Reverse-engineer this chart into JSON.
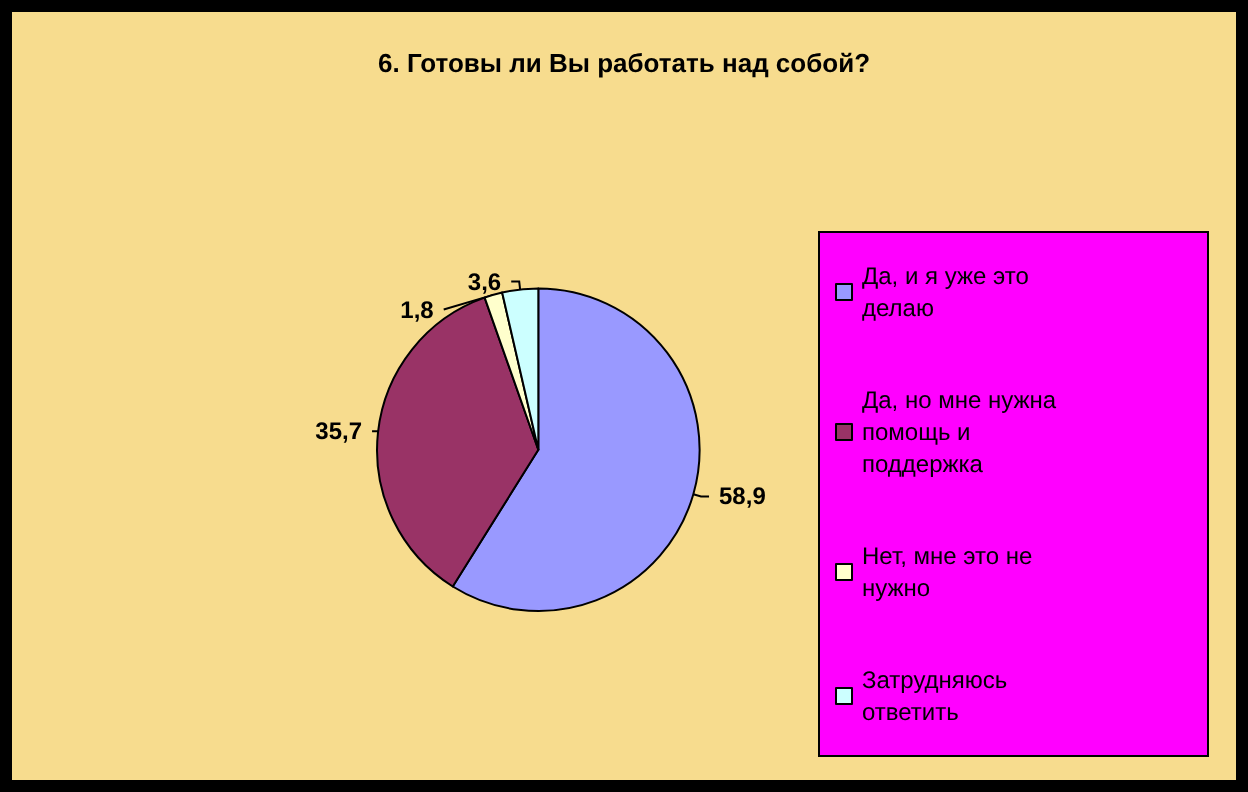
{
  "chart_data": {
    "type": "pie",
    "title": "6. Готовы ли Вы работать над собой?",
    "categories": [
      "Да, и я уже это делаю",
      "Да, но мне нужна помощь и поддержка",
      "Нет, мне это не нужно",
      "Затрудняюсь ответить"
    ],
    "values": [
      58.9,
      35.7,
      1.8,
      3.6
    ],
    "colors": [
      "#9999ff",
      "#993366",
      "#ffffcc",
      "#ccffff"
    ],
    "value_labels": [
      "58,9",
      "35,7",
      "1,8",
      "3,6"
    ],
    "legend": "right"
  }
}
